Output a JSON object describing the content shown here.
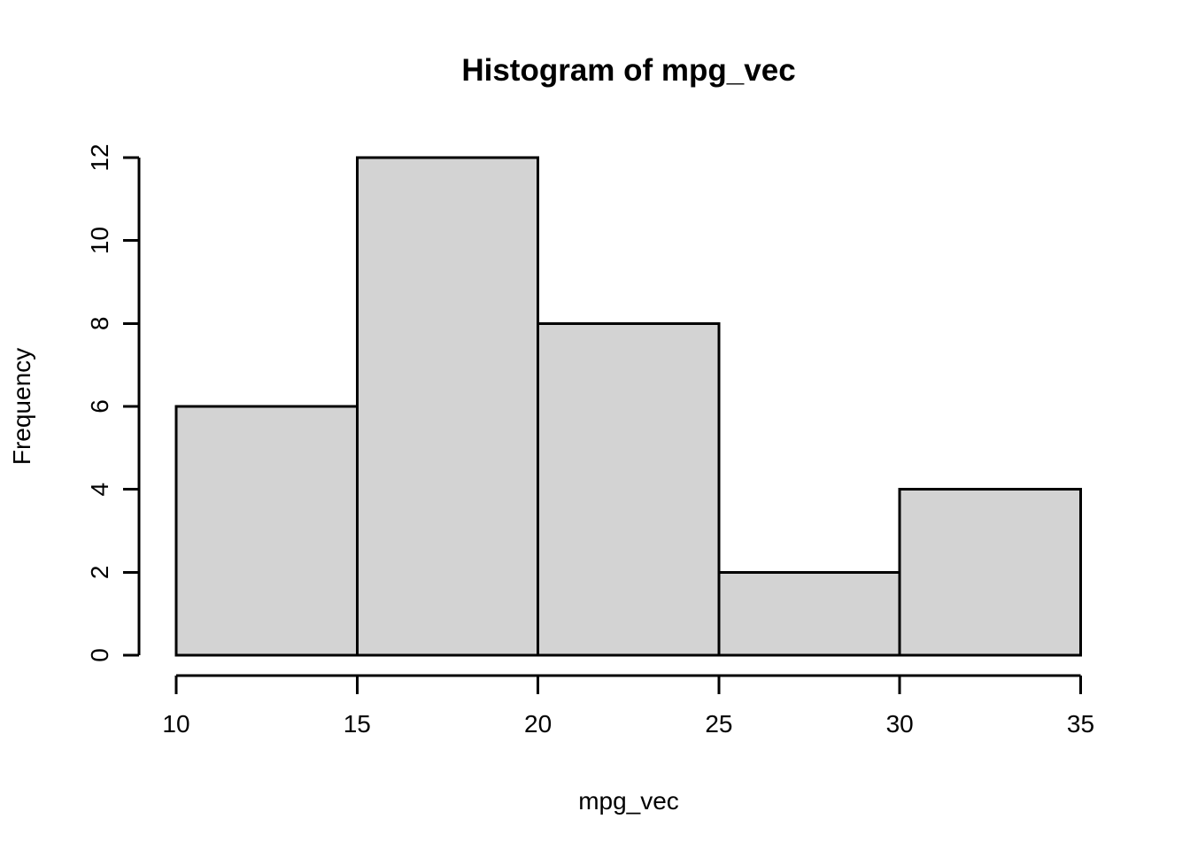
{
  "figure": {
    "background": "#ffffff"
  },
  "chart_data": {
    "type": "bar",
    "subtype": "histogram",
    "title": "Histogram of mpg_vec",
    "xlabel": "mpg_vec",
    "ylabel": "Frequency",
    "bin_edges": [
      10,
      15,
      20,
      25,
      30,
      35
    ],
    "counts": [
      6,
      12,
      8,
      2,
      4
    ],
    "categories": [
      "10-15",
      "15-20",
      "20-25",
      "25-30",
      "30-35"
    ],
    "x_ticks": [
      10,
      15,
      20,
      25,
      30,
      35
    ],
    "y_ticks": [
      0,
      2,
      4,
      6,
      8,
      10,
      12
    ],
    "xlim": [
      10,
      35
    ],
    "ylim": [
      0,
      12
    ],
    "grid": false,
    "legend": "none",
    "bar_fill": "#d3d3d3",
    "bar_stroke": "#000000",
    "axis_color": "#000000",
    "text_color": "#000000"
  }
}
